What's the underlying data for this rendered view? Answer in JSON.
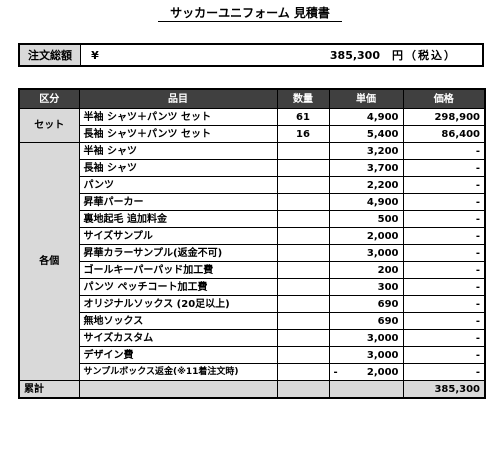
{
  "title": "サッカーユニフォーム 見積書",
  "total": {
    "label": "注文総額",
    "currency": "¥",
    "value": "385,300",
    "suffix": "円（税込）"
  },
  "table": {
    "headers": [
      "区分",
      "品目",
      "数量",
      "単価",
      "価格"
    ],
    "set_group": {
      "category": "セット",
      "rows": [
        {
          "item": "半袖 シャツ＋パンツ セット",
          "qty": "61",
          "unit": "4,900",
          "amount": "298,900"
        },
        {
          "item": "長袖 シャツ＋パンツ セット",
          "qty": "16",
          "unit": "5,400",
          "amount": "86,400"
        }
      ]
    },
    "each_group": {
      "category": "各個",
      "rows": [
        {
          "item": "半袖 シャツ",
          "qty": "",
          "unit": "3,200",
          "amount": "-"
        },
        {
          "item": "長袖 シャツ",
          "qty": "",
          "unit": "3,700",
          "amount": "-"
        },
        {
          "item": "パンツ",
          "qty": "",
          "unit": "2,200",
          "amount": "-"
        },
        {
          "item": "昇華パーカー",
          "qty": "",
          "unit": "4,900",
          "amount": "-"
        },
        {
          "item": "裏地起毛 追加料金",
          "qty": "",
          "unit": "500",
          "amount": "-"
        },
        {
          "item": "サイズサンプル",
          "qty": "",
          "unit": "2,000",
          "amount": "-"
        },
        {
          "item": "昇華カラーサンプル(返金不可)",
          "qty": "",
          "unit": "3,000",
          "amount": "-"
        },
        {
          "item": "ゴールキーパーパッド加工費",
          "qty": "",
          "unit": "200",
          "amount": "-"
        },
        {
          "item": "パンツ ペッチコート加工費",
          "qty": "",
          "unit": "300",
          "amount": "-"
        },
        {
          "item": "オリジナルソックス (20足以上)",
          "qty": "",
          "unit": "690",
          "amount": "-"
        },
        {
          "item": "無地ソックス",
          "qty": "",
          "unit": "690",
          "amount": "-"
        },
        {
          "item": "サイズカスタム",
          "qty": "",
          "unit": "3,000",
          "amount": "-"
        },
        {
          "item": "デザイン費",
          "qty": "",
          "unit": "3,000",
          "amount": "-"
        },
        {
          "item": "サンプルボックス返金(※11着注文時)",
          "qty": "",
          "unit_sign": "-",
          "unit": "2,000",
          "amount": "-"
        }
      ]
    },
    "sum": {
      "label": "累計",
      "amount": "385,300"
    }
  }
}
